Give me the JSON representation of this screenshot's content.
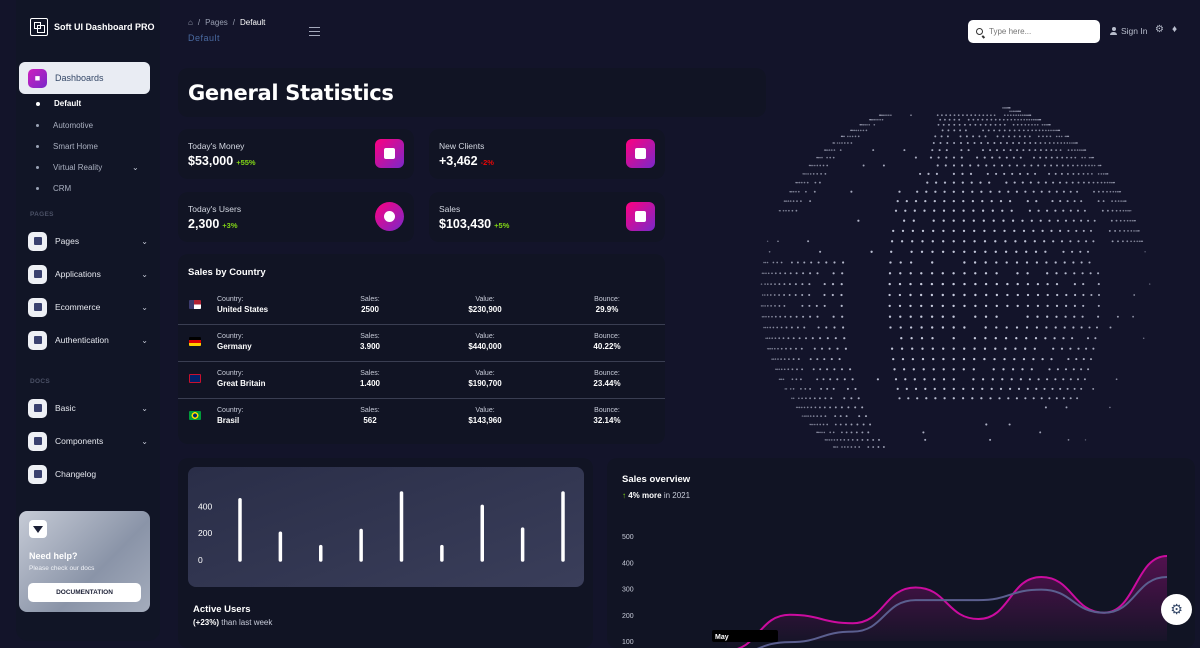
{
  "sidebar": {
    "brand": "Soft UI Dashboard PRO",
    "active_item": "Dashboards",
    "dashboards_sub": [
      "Default",
      "Automotive",
      "Smart Home",
      "Virtual Reality",
      "CRM"
    ],
    "section_pages": "PAGES",
    "pages_items": [
      "Pages",
      "Applications",
      "Ecommerce",
      "Authentication"
    ],
    "section_docs": "DOCS",
    "docs_items": [
      "Basic",
      "Components",
      "Changelog"
    ],
    "help": {
      "title": "Need help?",
      "subtitle": "Please check our docs",
      "button": "DOCUMENTATION"
    }
  },
  "header": {
    "breadcrumb": [
      "Pages",
      "Default"
    ],
    "title": "Default",
    "search_placeholder": "Type here...",
    "signin": "Sign In"
  },
  "main": {
    "title": "General Statistics",
    "stats": [
      {
        "label": "Today's Money",
        "value": "$53,000",
        "change": "+55%"
      },
      {
        "label": "New Clients",
        "value": "+3,462",
        "change": "-2%"
      },
      {
        "label": "Today's Users",
        "value": "2,300",
        "change": "+3%"
      },
      {
        "label": "Sales",
        "value": "$103,430",
        "change": "+5%"
      }
    ],
    "sales_by_country": {
      "title": "Sales by Country",
      "col_labels": [
        "Country:",
        "Sales:",
        "Value:",
        "Bounce:"
      ],
      "rows": [
        {
          "country": "United States",
          "sales": "2500",
          "value": "$230,900",
          "bounce": "29.9%"
        },
        {
          "country": "Germany",
          "sales": "3.900",
          "value": "$440,000",
          "bounce": "40.22%"
        },
        {
          "country": "Great Britain",
          "sales": "1.400",
          "value": "$190,700",
          "bounce": "23.44%"
        },
        {
          "country": "Brasil",
          "sales": "562",
          "value": "$143,960",
          "bounce": "32.14%"
        }
      ]
    },
    "active_users": {
      "title": "Active Users",
      "change": "(+23%)",
      "subtitle": " than last week"
    },
    "sales_overview": {
      "title": "Sales overview",
      "change": "4% more",
      "subtitle": " in 2021"
    }
  },
  "chart_data": [
    {
      "type": "bar",
      "title": "Active Users",
      "yticks": [
        "400",
        "200",
        "0"
      ],
      "ylim": [
        0,
        500
      ],
      "values": [
        450,
        200,
        100,
        220,
        500,
        100,
        400,
        230,
        500
      ],
      "color": "#ffffff"
    },
    {
      "type": "line",
      "title": "Sales overview",
      "yticks": [
        "500",
        "400",
        "300",
        "200",
        "100"
      ],
      "ylim": [
        100,
        500
      ],
      "xlabel_visible": "May",
      "series": [
        {
          "color": "#cb0c9f",
          "values": [
            50,
            220,
            180,
            350,
            200,
            400,
            230,
            500
          ]
        },
        {
          "color": "#3a416f",
          "values": [
            30,
            90,
            140,
            290,
            290,
            340,
            230,
            400
          ]
        }
      ]
    }
  ]
}
